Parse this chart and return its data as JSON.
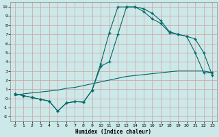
{
  "bg_color": "#cce8e8",
  "grid_color": "#b0d0d0",
  "line_color": "#006666",
  "xlabel": "Humidex (Indice chaleur)",
  "xlim": [
    -0.5,
    23.5
  ],
  "ylim": [
    -2.5,
    10.5
  ],
  "xticks": [
    0,
    1,
    2,
    3,
    4,
    5,
    6,
    7,
    8,
    9,
    10,
    11,
    12,
    13,
    14,
    15,
    16,
    17,
    18,
    19,
    20,
    21,
    22,
    23
  ],
  "yticks": [
    -2,
    -1,
    0,
    1,
    2,
    3,
    4,
    5,
    6,
    7,
    8,
    9,
    10
  ],
  "line1_x": [
    0,
    1,
    2,
    3,
    4,
    5,
    6,
    7,
    8,
    9,
    10,
    11,
    12,
    13,
    14,
    15,
    16,
    17,
    18,
    19,
    20,
    21,
    22,
    23
  ],
  "line1_y": [
    0.5,
    0.3,
    0.1,
    -0.1,
    -0.3,
    -1.4,
    -0.5,
    -0.35,
    -0.4,
    0.9,
    3.8,
    7.2,
    10.0,
    10.0,
    10.0,
    9.5,
    8.7,
    8.2,
    7.2,
    7.0,
    6.8,
    5.0,
    2.8,
    2.8
  ],
  "line2_x": [
    0,
    1,
    2,
    3,
    4,
    5,
    6,
    7,
    8,
    9,
    10,
    11,
    12,
    13,
    14,
    15,
    16,
    17,
    18,
    19,
    20,
    21,
    22,
    23
  ],
  "line2_y": [
    0.3,
    0.5,
    0.6,
    0.7,
    0.8,
    0.9,
    1.1,
    1.2,
    1.4,
    1.6,
    1.8,
    2.0,
    2.2,
    2.4,
    2.5,
    2.6,
    2.7,
    2.8,
    2.9,
    3.0,
    3.0,
    3.0,
    3.0,
    2.8
  ],
  "line3_x": [
    0,
    1,
    2,
    3,
    4,
    5,
    6,
    7,
    8,
    9,
    10,
    11,
    12,
    13,
    14,
    15,
    16,
    17,
    18,
    19,
    20,
    21,
    22,
    23
  ],
  "line3_y": [
    0.5,
    0.3,
    0.1,
    -0.1,
    -0.3,
    -1.4,
    -0.5,
    -0.35,
    -0.4,
    0.9,
    3.5,
    4.0,
    7.0,
    10.0,
    10.0,
    9.8,
    9.3,
    8.5,
    7.3,
    7.0,
    6.8,
    6.5,
    5.0,
    2.5
  ]
}
